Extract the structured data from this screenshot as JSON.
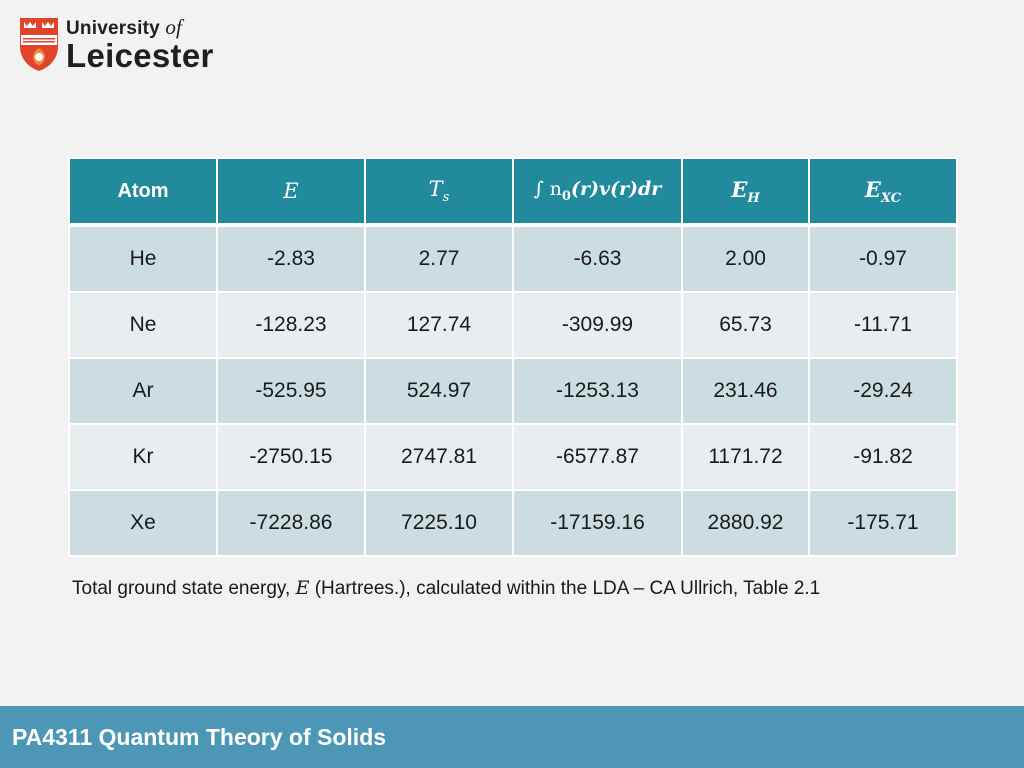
{
  "logo": {
    "line1_main": "University",
    "line1_of": "of",
    "line2": "Leicester",
    "crest_ribbon": "UT VITAM HABEANT",
    "colors": {
      "crest_red": "#e0452b",
      "crest_orange": "#f08a3e",
      "ribbon": "#ffffff"
    }
  },
  "table": {
    "headers": [
      {
        "text": "Atom"
      },
      {
        "main": "E",
        "sub": ""
      },
      {
        "main": "T",
        "sub": "s"
      },
      {
        "integral": "∫ n",
        "sub0": "0",
        "rest": "(r)v(r)dr"
      },
      {
        "main": "E",
        "sub": "H"
      },
      {
        "main": "E",
        "sub": "XC"
      }
    ],
    "rows": [
      [
        "He",
        "-2.83",
        "2.77",
        "-6.63",
        "2.00",
        "-0.97"
      ],
      [
        "Ne",
        "-128.23",
        "127.74",
        "-309.99",
        "65.73",
        "-11.71"
      ],
      [
        "Ar",
        "-525.95",
        "524.97",
        "-1253.13",
        "231.46",
        "-29.24"
      ],
      [
        "Kr",
        "-2750.15",
        "2747.81",
        "-6577.87",
        "1171.72",
        "-91.82"
      ],
      [
        "Xe",
        "-7228.86",
        "7225.10",
        "-17159.16",
        "2880.92",
        "-175.71"
      ]
    ],
    "colors": {
      "header": "#218a9c",
      "row_dark": "#ccdde2",
      "row_light": "#e8eef0"
    }
  },
  "caption": {
    "before": "Total ground state energy, ",
    "var": "E",
    "after": " (Hartrees.), calculated within the LDA – CA Ullrich, Table 2.1"
  },
  "footer": {
    "text": "PA4311 Quantum Theory of Solids",
    "color": "#4b97b5"
  }
}
